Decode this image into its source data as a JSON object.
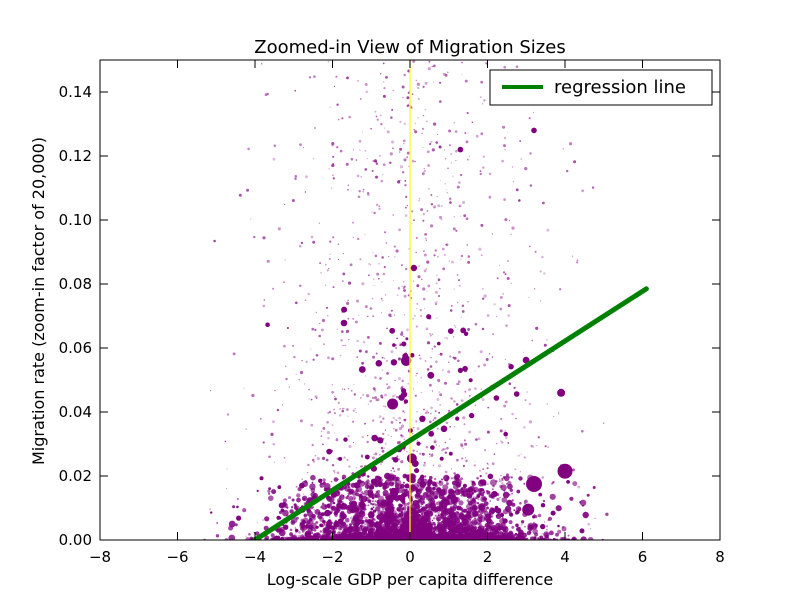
{
  "chart_data": {
    "type": "scatter",
    "title": "Zoomed-in View of Migration Sizes",
    "xlabel": "Log-scale GDP per capita difference",
    "ylabel": "Migration rate (zoom-in factor of 20,000)",
    "xlim": [
      -8,
      8
    ],
    "ylim": [
      0,
      0.15
    ],
    "x_ticks": [
      "−8",
      "−6",
      "−4",
      "−2",
      "0",
      "2",
      "4",
      "6",
      "8"
    ],
    "y_ticks": [
      "0.00",
      "0.02",
      "0.04",
      "0.06",
      "0.08",
      "0.10",
      "0.12",
      "0.14"
    ],
    "grid": false,
    "legend": {
      "placement": "top-right",
      "entries": [
        "regression line"
      ]
    },
    "colors": {
      "points": "#800080",
      "regression": "#008000",
      "zero_line": "#ffff00"
    },
    "vertical_line": {
      "x": 0
    },
    "regression_line": {
      "name": "regression line",
      "x": [
        -4.0,
        6.1
      ],
      "y": [
        0.0,
        0.0785
      ]
    },
    "highlighted_points": [
      {
        "x": 3.2,
        "y": 0.0175
      },
      {
        "x": 4.0,
        "y": 0.0215
      },
      {
        "x": -0.45,
        "y": 0.0425
      },
      {
        "x": -0.1,
        "y": 0.056
      },
      {
        "x": 0.05,
        "y": 0.0255
      },
      {
        "x": 3.05,
        "y": 0.0095
      },
      {
        "x": 0.1,
        "y": 0.085
      },
      {
        "x": -1.7,
        "y": 0.072
      },
      {
        "x": 1.3,
        "y": 0.122
      },
      {
        "x": 3.2,
        "y": 0.128
      },
      {
        "x": 3.9,
        "y": 0.046
      },
      {
        "x": 1.3,
        "y": 0.053
      }
    ],
    "scatter_cloud": {
      "description": "dense purple scatter concentrated near y=0 between x=-5.5 and x=5.5",
      "x_range": [
        -5.5,
        5.5
      ],
      "y_range": [
        0,
        0.15
      ]
    }
  }
}
